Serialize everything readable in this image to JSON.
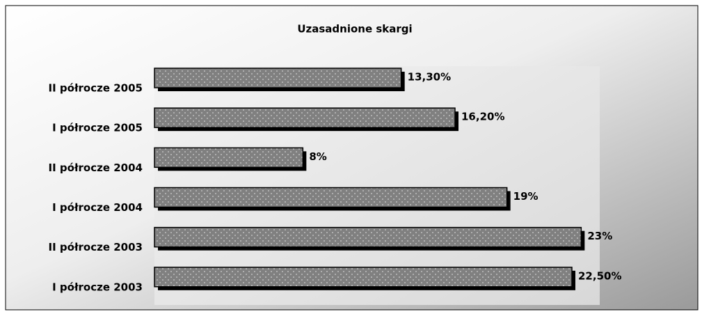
{
  "chart_data": {
    "type": "hbar",
    "title": "Uzasadnione skargi",
    "categories": [
      "II półrocze 2005",
      "I półrocze 2005",
      "II półrocze 2004",
      "I półrocze 2004",
      "II półrocze 2003",
      "I półrocze 2003"
    ],
    "values": [
      13.3,
      16.2,
      8,
      19,
      23,
      22.5
    ],
    "value_labels": [
      "13,30%",
      "16,20%",
      "8%",
      "19%",
      "23%",
      "22,50%"
    ],
    "color": "#808080",
    "xlim": [
      0,
      24
    ]
  }
}
